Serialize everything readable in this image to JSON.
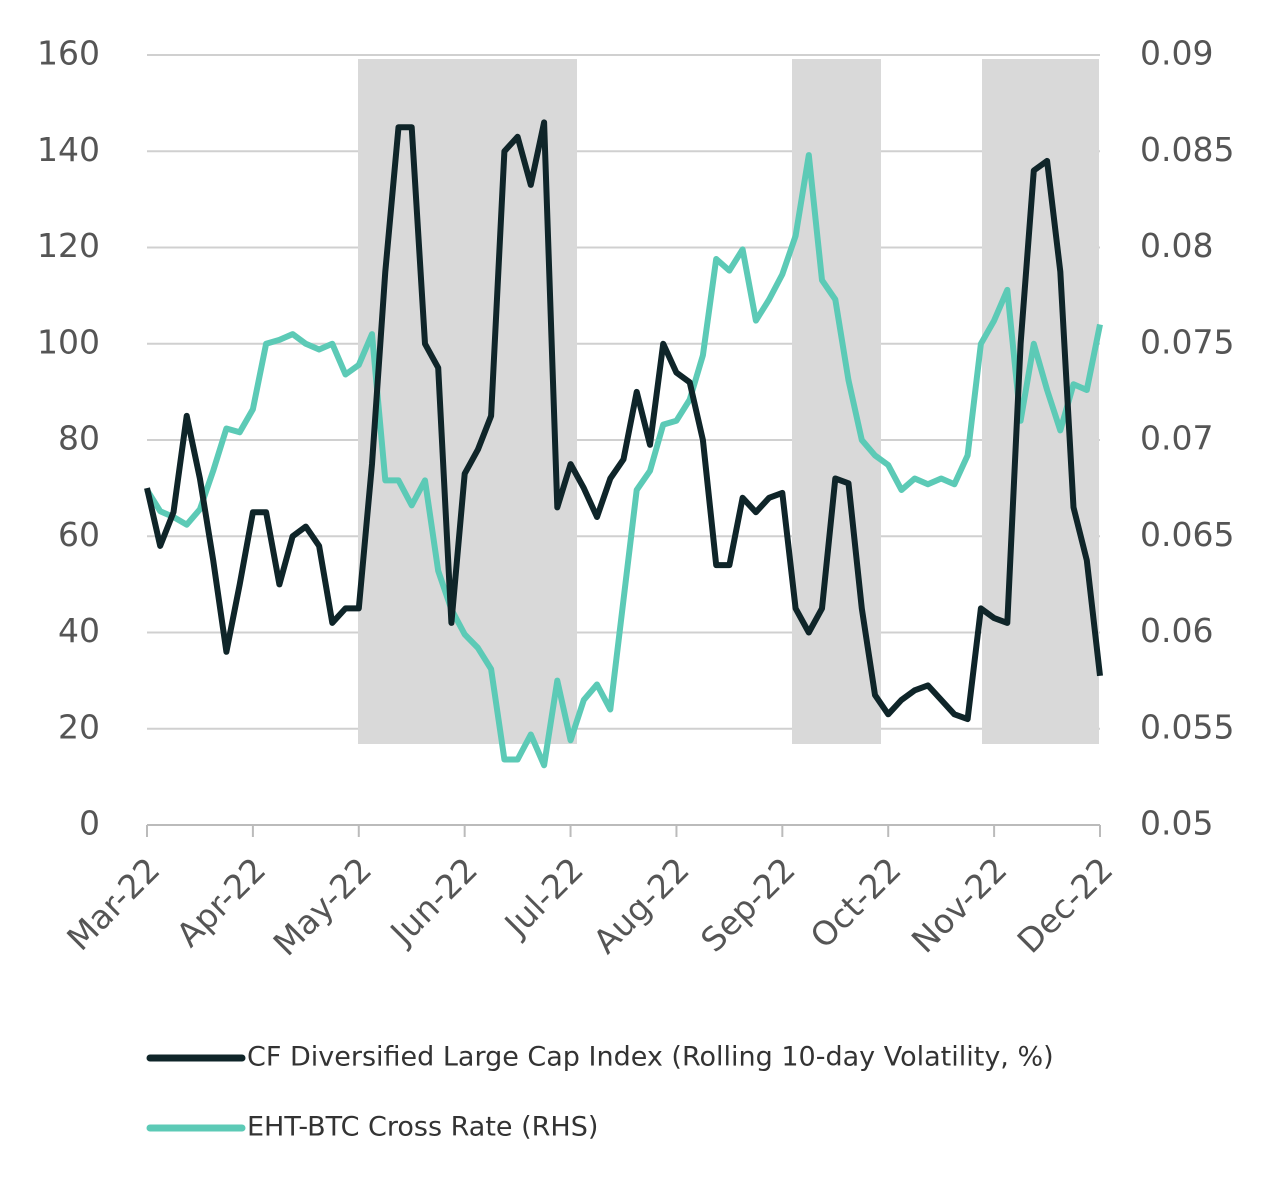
{
  "chart_data": {
    "type": "line",
    "categories": [
      "Mar-22",
      null,
      null,
      null,
      null,
      null,
      null,
      null,
      "Apr-22",
      null,
      null,
      null,
      null,
      null,
      null,
      null,
      "May-22",
      null,
      null,
      null,
      null,
      null,
      null,
      null,
      "Jun-22",
      null,
      null,
      null,
      null,
      null,
      null,
      null,
      "Jul-22",
      null,
      null,
      null,
      null,
      null,
      null,
      null,
      "Aug-22",
      null,
      null,
      null,
      null,
      null,
      null,
      null,
      "Sep-22",
      null,
      null,
      null,
      null,
      null,
      null,
      null,
      "Oct-22",
      null,
      null,
      null,
      null,
      null,
      null,
      null,
      "Nov-22",
      null,
      null,
      null,
      null,
      null,
      null,
      null,
      "Dec-22"
    ],
    "series": [
      {
        "name": "CF Diversified Large Cap Index (Rolling 10-day Volatility, %)",
        "color": "#0f2529",
        "axis": "y",
        "values": [
          70,
          58,
          65,
          85,
          72,
          55,
          36,
          50,
          65,
          65,
          50,
          60,
          62,
          58,
          42,
          45,
          45,
          75,
          115,
          145,
          145,
          100,
          95,
          42,
          73,
          78,
          85,
          140,
          143,
          133,
          146,
          66,
          75,
          70,
          64,
          72,
          76,
          90,
          79,
          100,
          94,
          92,
          80,
          54,
          54,
          68,
          65,
          68,
          69,
          45,
          40,
          45,
          72,
          71,
          45,
          27,
          23,
          26,
          28,
          29,
          26,
          23,
          22,
          45,
          43,
          42,
          100,
          136,
          138,
          115,
          66,
          55,
          31
        ]
      },
      {
        "name": "EHT-BTC Cross Rate (RHS)",
        "color": "#5ccab6",
        "axis": "y2",
        "values": [
          0.0674,
          0.0663,
          0.066,
          0.0656,
          0.0664,
          0.0684,
          0.0706,
          0.0704,
          0.0716,
          0.075,
          0.0752,
          0.0755,
          0.075,
          0.0747,
          0.075,
          0.0734,
          0.0739,
          0.0755,
          0.0679,
          0.0679,
          0.0666,
          0.0679,
          0.0632,
          0.0612,
          0.0599,
          0.0592,
          0.0581,
          0.0534,
          0.0534,
          0.0547,
          0.0531,
          0.0575,
          0.0544,
          0.0565,
          0.0573,
          0.056,
          0.0617,
          0.0674,
          0.0684,
          0.0708,
          0.071,
          0.0721,
          0.0744,
          0.0794,
          0.0788,
          0.0799,
          0.0762,
          0.0773,
          0.0786,
          0.0806,
          0.0848,
          0.0783,
          0.0773,
          0.0731,
          0.07,
          0.0692,
          0.0687,
          0.0674,
          0.068,
          0.0677,
          0.068,
          0.0677,
          0.0692,
          0.075,
          0.0762,
          0.0778,
          0.071,
          0.075,
          0.0726,
          0.0705,
          0.0729,
          0.0726,
          0.076
        ]
      }
    ],
    "ylim": [
      0,
      160
    ],
    "yticks": [
      0,
      20,
      40,
      60,
      80,
      100,
      120,
      140,
      160
    ],
    "y2lim": [
      0.05,
      0.09
    ],
    "y2ticks": [
      0.05,
      0.055,
      0.06,
      0.065,
      0.07,
      0.075,
      0.08,
      0.085,
      0.09
    ],
    "grid": true
  }
}
